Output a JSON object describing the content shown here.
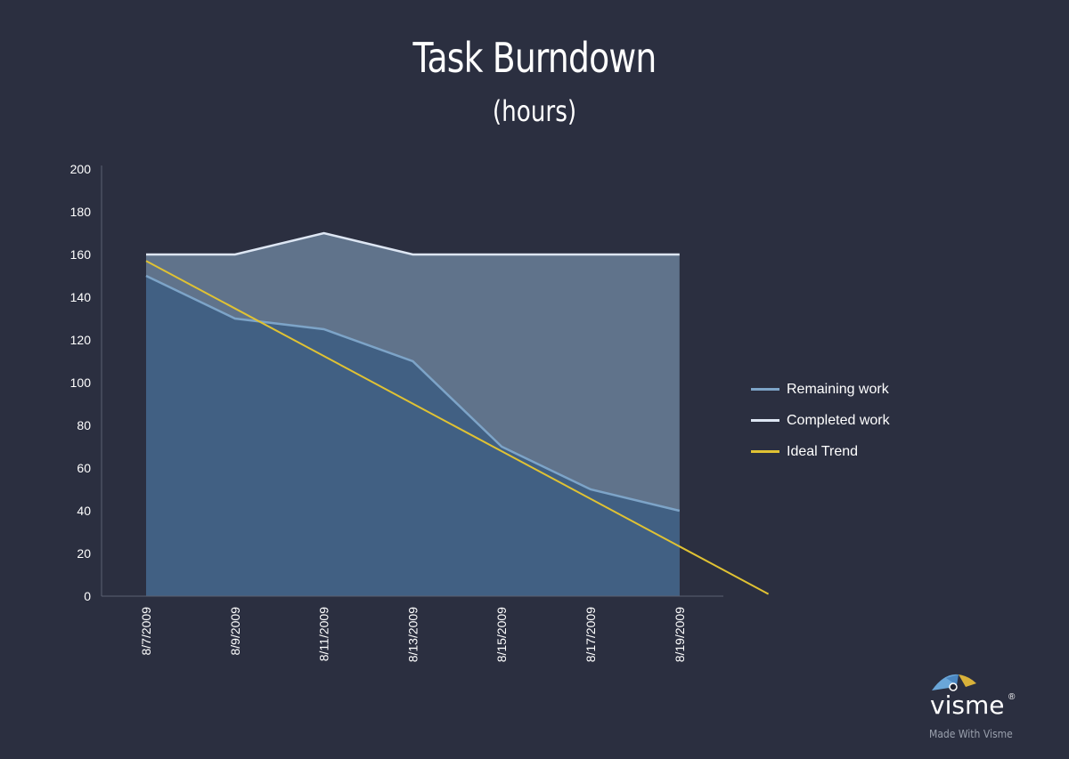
{
  "chart_data": {
    "type": "area",
    "title": "Task Burndown",
    "subtitle": "(hours)",
    "categories": [
      "8/7/2009",
      "8/9/2009",
      "8/11/2009",
      "8/13/2009",
      "8/15/2009",
      "8/17/2009",
      "8/19/2009"
    ],
    "y_ticks": [
      "0",
      "20",
      "40",
      "60",
      "80",
      "100",
      "120",
      "140",
      "160",
      "180",
      "200"
    ],
    "ylim": [
      0,
      200
    ],
    "series": [
      {
        "name": "Remaining work",
        "type": "area",
        "color": "#7da4c8",
        "fill": "#416083",
        "values": [
          150,
          130,
          125,
          110,
          70,
          50,
          40
        ]
      },
      {
        "name": "Completed work",
        "type": "area",
        "color": "#dde6f3",
        "fill": "#60738b",
        "values": [
          160,
          160,
          170,
          160,
          160,
          160,
          160
        ]
      },
      {
        "name": "Ideal Trend",
        "type": "line",
        "color": "#e0c233",
        "start": {
          "x": "8/7/2009",
          "y": 157
        },
        "end": {
          "x": "8/21/2009",
          "y": 1
        }
      }
    ],
    "legend_position": "right",
    "grid": false
  },
  "brand": {
    "name": "visme",
    "registered": "®",
    "tagline": "Made With Visme"
  }
}
